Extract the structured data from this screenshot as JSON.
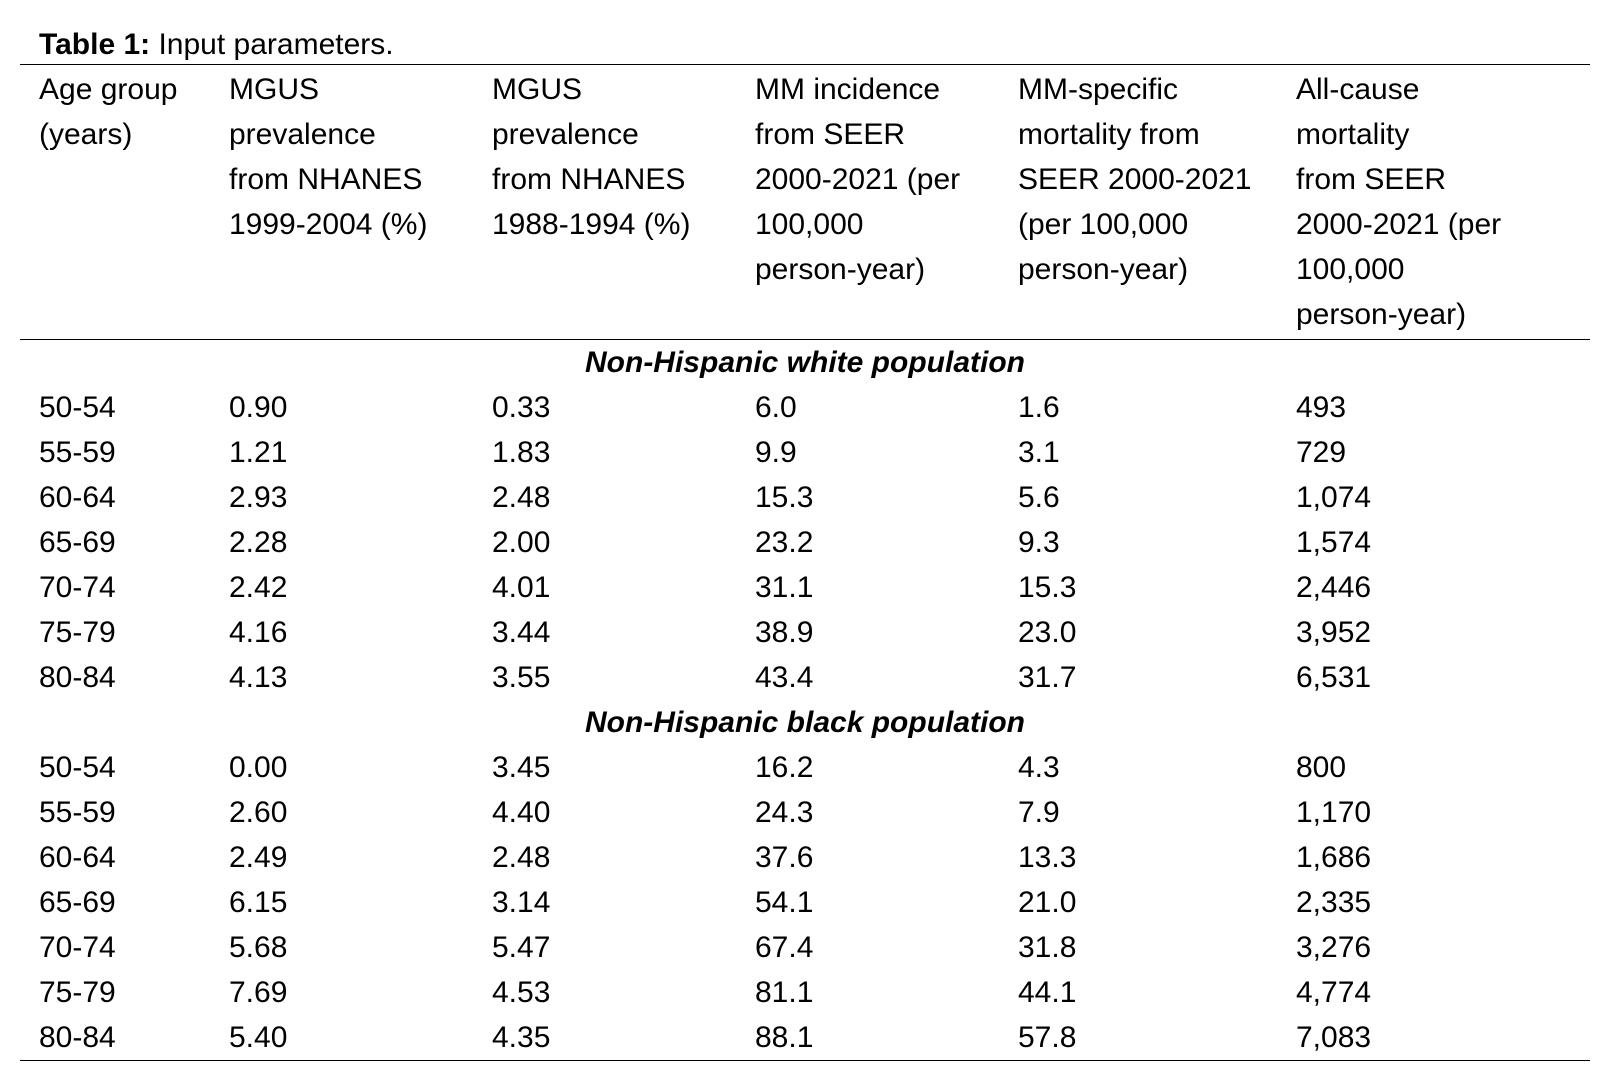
{
  "caption": {
    "label": "Table 1:",
    "text": " Input parameters."
  },
  "columns": [
    [
      "Age group",
      "(years)"
    ],
    [
      "MGUS",
      "prevalence",
      "from NHANES",
      "1999-2004 (%)"
    ],
    [
      "MGUS",
      "prevalence",
      "from NHANES",
      "1988-1994 (%)"
    ],
    [
      "MM incidence",
      "from SEER",
      "2000-2021 (per",
      "100,000",
      "person-year)"
    ],
    [
      "MM-specific",
      "mortality from",
      "SEER 2000-2021",
      "(per 100,000",
      "person-year)"
    ],
    [
      "All-cause",
      "mortality",
      "from SEER",
      "2000-2021 (per",
      "100,000",
      "person-year)"
    ]
  ],
  "groups": [
    {
      "title": "Non-Hispanic white population",
      "rows": [
        [
          "50-54",
          "0.90",
          "0.33",
          "6.0",
          "1.6",
          "493"
        ],
        [
          "55-59",
          "1.21",
          "1.83",
          "9.9",
          "3.1",
          "729"
        ],
        [
          "60-64",
          "2.93",
          "2.48",
          "15.3",
          "5.6",
          "1,074"
        ],
        [
          "65-69",
          "2.28",
          "2.00",
          "23.2",
          "9.3",
          "1,574"
        ],
        [
          "70-74",
          "2.42",
          "4.01",
          "31.1",
          "15.3",
          "2,446"
        ],
        [
          "75-79",
          "4.16",
          "3.44",
          "38.9",
          "23.0",
          "3,952"
        ],
        [
          "80-84",
          "4.13",
          "3.55",
          "43.4",
          "31.7",
          "6,531"
        ]
      ]
    },
    {
      "title": "Non-Hispanic black population",
      "rows": [
        [
          "50-54",
          "0.00",
          "3.45",
          "16.2",
          "4.3",
          "800"
        ],
        [
          "55-59",
          "2.60",
          "4.40",
          "24.3",
          "7.9",
          "1,170"
        ],
        [
          "60-64",
          "2.49",
          "2.48",
          "37.6",
          "13.3",
          "1,686"
        ],
        [
          "65-69",
          "6.15",
          "3.14",
          "54.1",
          "21.0",
          "2,335"
        ],
        [
          "70-74",
          "5.68",
          "5.47",
          "67.4",
          "31.8",
          "3,276"
        ],
        [
          "75-79",
          "7.69",
          "4.53",
          "81.1",
          "44.1",
          "4,774"
        ],
        [
          "80-84",
          "5.40",
          "4.35",
          "88.1",
          "57.8",
          "7,083"
        ]
      ]
    }
  ]
}
